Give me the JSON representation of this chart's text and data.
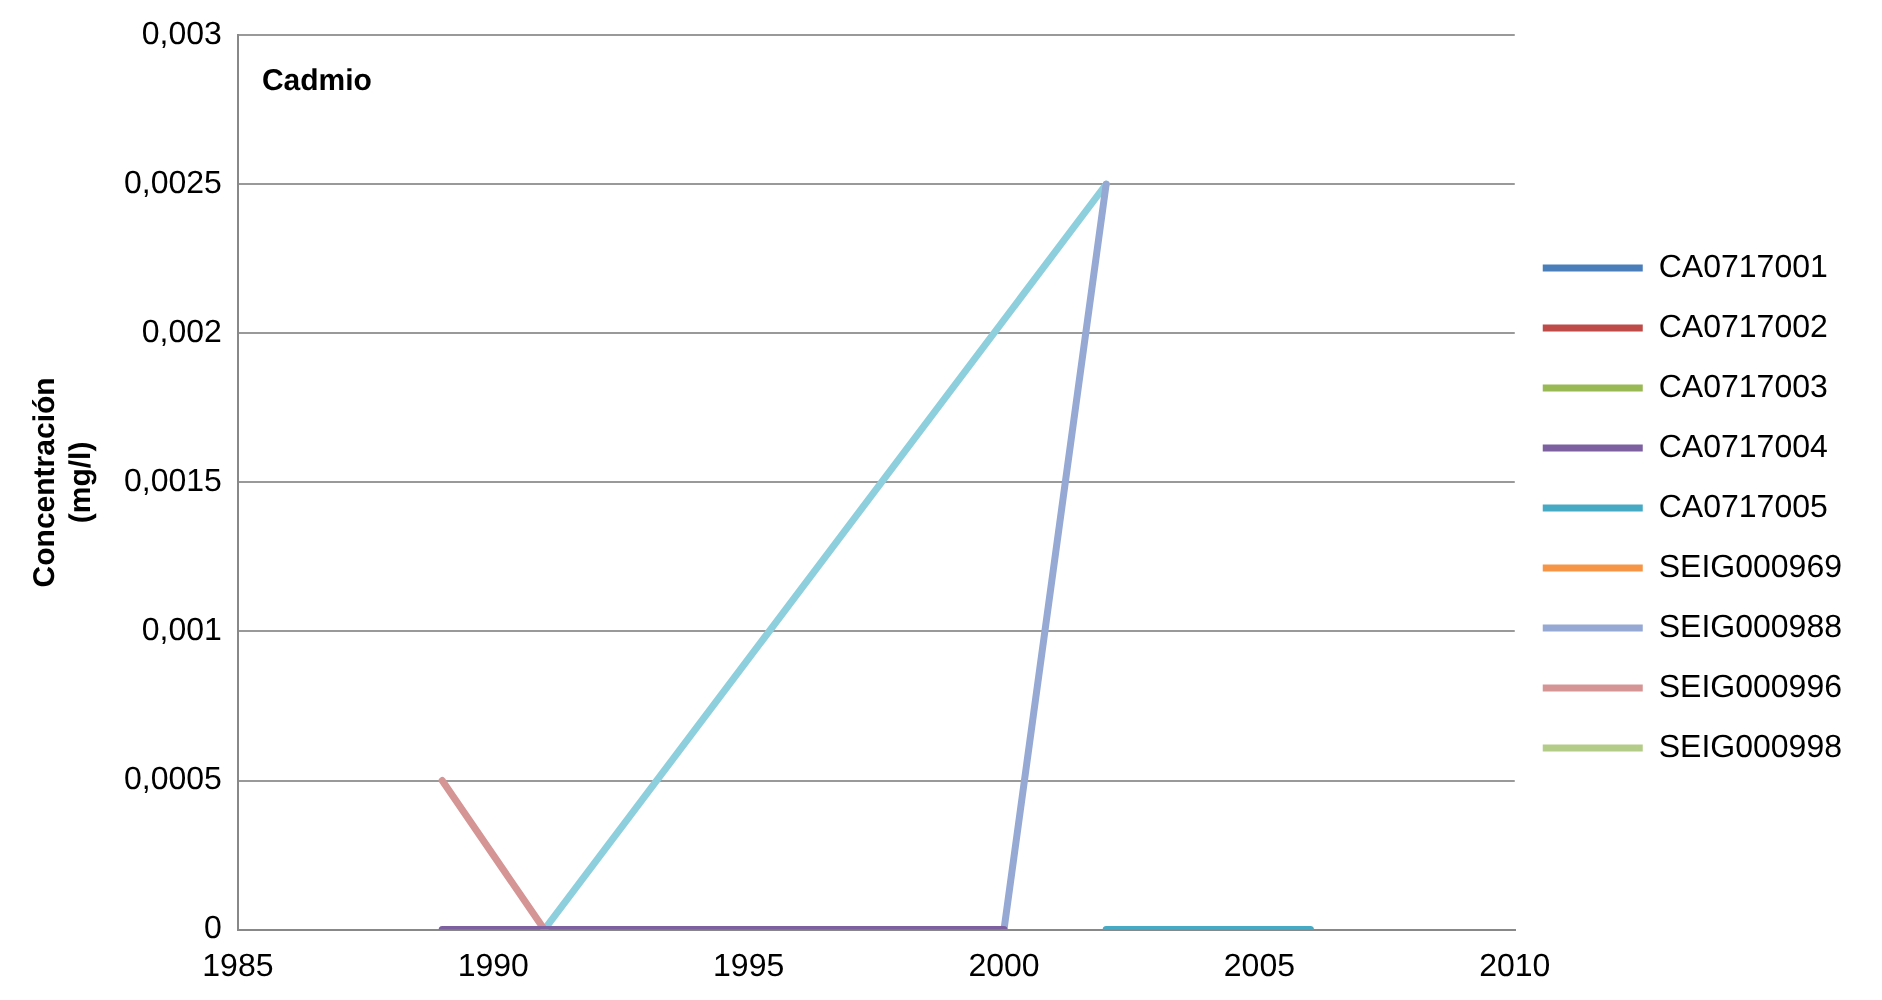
{
  "chart_data": {
    "type": "line",
    "title": "Cadmio",
    "ylabel": "Concentración (mg/l)",
    "xlim": [
      1985,
      2010
    ],
    "xticks": [
      1985,
      1990,
      1995,
      2000,
      2005,
      2010
    ],
    "ylim": [
      0,
      0.003
    ],
    "yticks": [
      {
        "value": 0,
        "label": "0"
      },
      {
        "value": 0.0005,
        "label": "0,0005"
      },
      {
        "value": 0.001,
        "label": "0,001"
      },
      {
        "value": 0.0015,
        "label": "0,0015"
      },
      {
        "value": 0.002,
        "label": "0,002"
      },
      {
        "value": 0.0025,
        "label": "0,0025"
      },
      {
        "value": 0.003,
        "label": "0,003"
      }
    ],
    "grid": "y",
    "legend": "right",
    "marker": "none",
    "line_style": "solid",
    "series": [
      {
        "name": "CA0717001",
        "color": "#4a7ebb"
      },
      {
        "name": "CA0717002",
        "color": "#be4b48"
      },
      {
        "name": "CA0717003",
        "color": "#98b954"
      },
      {
        "name": "CA0717004",
        "color": "#7d60a0",
        "x": [
          1989,
          2000
        ],
        "values": [
          0,
          0
        ]
      },
      {
        "name": "CA0717005",
        "color": "#46aac5",
        "x": [
          2002,
          2006
        ],
        "values": [
          0,
          0
        ]
      },
      {
        "name": "SEIG000969",
        "color": "#f69546"
      },
      {
        "name": "SEIG000988",
        "color": "#95a9d4",
        "x": [
          2000,
          2002
        ],
        "values": [
          0,
          0.0025
        ]
      },
      {
        "name": "SEIG000996",
        "color": "#d69595",
        "x": [
          1989,
          1991
        ],
        "values": [
          0.0005,
          0
        ]
      },
      {
        "name": "SEIG000998",
        "color": "#b3cc88"
      },
      {
        "color": "#8ecfdd",
        "x": [
          1991,
          2002
        ],
        "values": [
          0,
          0.0025
        ]
      }
    ]
  }
}
